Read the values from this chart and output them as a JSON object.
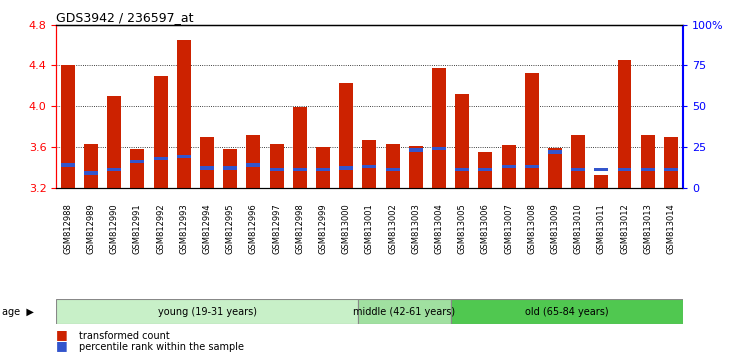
{
  "title": "GDS3942 / 236597_at",
  "samples": [
    "GSM812988",
    "GSM812989",
    "GSM812990",
    "GSM812991",
    "GSM812992",
    "GSM812993",
    "GSM812994",
    "GSM812995",
    "GSM812996",
    "GSM812997",
    "GSM812998",
    "GSM812999",
    "GSM813000",
    "GSM813001",
    "GSM813002",
    "GSM813003",
    "GSM813004",
    "GSM813005",
    "GSM813006",
    "GSM813007",
    "GSM813008",
    "GSM813009",
    "GSM813010",
    "GSM813011",
    "GSM813012",
    "GSM813013",
    "GSM813014"
  ],
  "transformed_count": [
    4.4,
    3.63,
    4.1,
    3.58,
    4.3,
    4.65,
    3.7,
    3.58,
    3.72,
    3.63,
    3.99,
    3.6,
    4.23,
    3.67,
    3.63,
    3.61,
    4.38,
    4.12,
    3.55,
    3.62,
    4.33,
    3.59,
    3.72,
    3.32,
    4.45,
    3.72,
    3.7
  ],
  "percentile_rank": [
    14,
    9,
    11,
    16,
    18,
    19,
    12,
    12,
    14,
    11,
    11,
    11,
    12,
    13,
    11,
    23,
    24,
    11,
    11,
    13,
    13,
    22,
    11,
    11,
    11,
    11,
    11
  ],
  "groups": [
    {
      "label": "young (19-31 years)",
      "start": 0,
      "end": 13,
      "color": "#c8f0c8"
    },
    {
      "label": "middle (42-61 years)",
      "start": 13,
      "end": 17,
      "color": "#a0e0a0"
    },
    {
      "label": "old (65-84 years)",
      "start": 17,
      "end": 27,
      "color": "#50c850"
    }
  ],
  "ylim_left": [
    3.2,
    4.8
  ],
  "ylim_right": [
    0,
    100
  ],
  "yticks_left": [
    3.2,
    3.6,
    4.0,
    4.4,
    4.8
  ],
  "yticks_right": [
    0,
    25,
    50,
    75,
    100
  ],
  "bar_color": "#cc2200",
  "blue_color": "#3355cc",
  "bar_width": 0.6,
  "background_color": "#ffffff",
  "plot_bg_color": "#ffffff"
}
